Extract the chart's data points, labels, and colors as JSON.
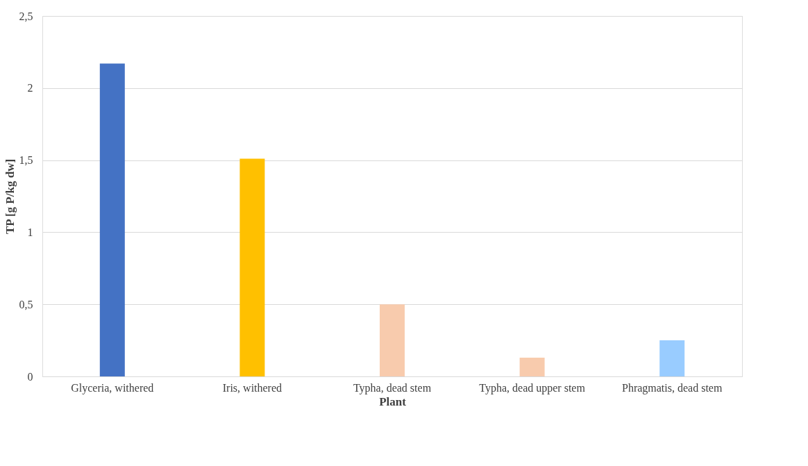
{
  "chart_data": {
    "type": "bar",
    "xlabel": "Plant",
    "ylabel": "TP [g P/kg dw]",
    "categories": [
      "Glyceria, withered",
      "Iris, withered",
      "Typha, dead stem",
      "Typha, dead upper stem",
      "Phragmatis, dead stem"
    ],
    "values": [
      2.17,
      1.51,
      0.5,
      0.13,
      0.25
    ],
    "colors": [
      "#4472c4",
      "#ffc000",
      "#f8cbad",
      "#f8cbad",
      "#99ccff"
    ],
    "ylim": [
      0,
      2.5
    ],
    "yticks": [
      0,
      {
        "value": 0.5,
        "label": "0,5"
      },
      1,
      {
        "value": 1.5,
        "label": "1,5"
      },
      2,
      {
        "value": 2.5,
        "label": "2,5"
      }
    ],
    "grid": "y"
  }
}
